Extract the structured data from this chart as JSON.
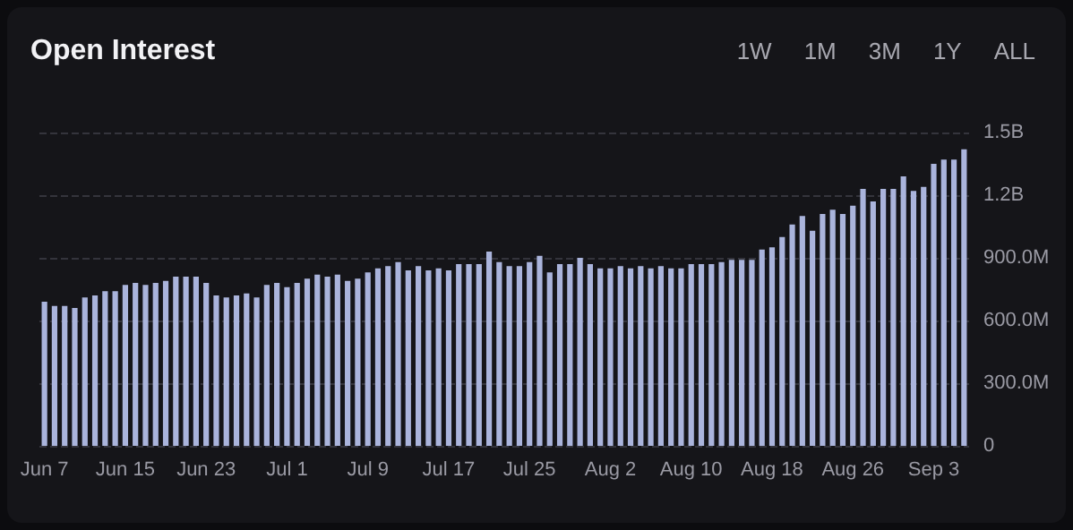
{
  "chart_data": {
    "type": "bar",
    "title": "Open Interest",
    "annotations": [
      "1W",
      "1M",
      "3M",
      "1Y",
      "ALL"
    ],
    "categories": [
      "Jun 7",
      null,
      null,
      null,
      null,
      null,
      null,
      null,
      "Jun 15",
      null,
      null,
      null,
      null,
      null,
      null,
      null,
      "Jun 23",
      null,
      null,
      null,
      null,
      null,
      null,
      null,
      "Jul 1",
      null,
      null,
      null,
      null,
      null,
      null,
      null,
      "Jul 9",
      null,
      null,
      null,
      null,
      null,
      null,
      null,
      "Jul 17",
      null,
      null,
      null,
      null,
      null,
      null,
      null,
      "Jul 25",
      null,
      null,
      null,
      null,
      null,
      null,
      null,
      "Aug 2",
      null,
      null,
      null,
      null,
      null,
      null,
      null,
      "Aug 10",
      null,
      null,
      null,
      null,
      null,
      null,
      null,
      "Aug 18",
      null,
      null,
      null,
      null,
      null,
      null,
      null,
      "Aug 26",
      null,
      null,
      null,
      null,
      null,
      null,
      null,
      "Sep 3",
      null,
      null,
      null
    ],
    "values": [
      690000000,
      670000000,
      670000000,
      660000000,
      710000000,
      720000000,
      740000000,
      740000000,
      770000000,
      780000000,
      770000000,
      780000000,
      790000000,
      810000000,
      810000000,
      810000000,
      780000000,
      720000000,
      710000000,
      720000000,
      730000000,
      710000000,
      770000000,
      780000000,
      760000000,
      780000000,
      800000000,
      820000000,
      810000000,
      820000000,
      790000000,
      800000000,
      830000000,
      850000000,
      860000000,
      880000000,
      840000000,
      860000000,
      840000000,
      850000000,
      840000000,
      870000000,
      870000000,
      870000000,
      930000000,
      880000000,
      860000000,
      860000000,
      880000000,
      910000000,
      830000000,
      870000000,
      870000000,
      900000000,
      870000000,
      850000000,
      850000000,
      860000000,
      850000000,
      860000000,
      850000000,
      860000000,
      850000000,
      850000000,
      870000000,
      870000000,
      870000000,
      880000000,
      890000000,
      890000000,
      890000000,
      940000000,
      950000000,
      1000000000,
      1060000000,
      1100000000,
      1030000000,
      1110000000,
      1130000000,
      1110000000,
      1150000000,
      1230000000,
      1170000000,
      1230000000,
      1230000000,
      1290000000,
      1220000000,
      1240000000,
      1350000000,
      1370000000,
      1370000000,
      1420000000
    ],
    "color": "#aab4dc",
    "ylim": [
      0,
      1500000000
    ],
    "yticks": [
      0,
      {
        "value": 300000000,
        "label": "300.0M"
      },
      {
        "value": 600000000,
        "label": "600.0M"
      },
      {
        "value": 900000000,
        "label": "900.0M"
      },
      {
        "value": 1200000000,
        "label": "1.2B"
      },
      {
        "value": 1500000000,
        "label": "1.5B"
      }
    ],
    "grid": "y"
  }
}
